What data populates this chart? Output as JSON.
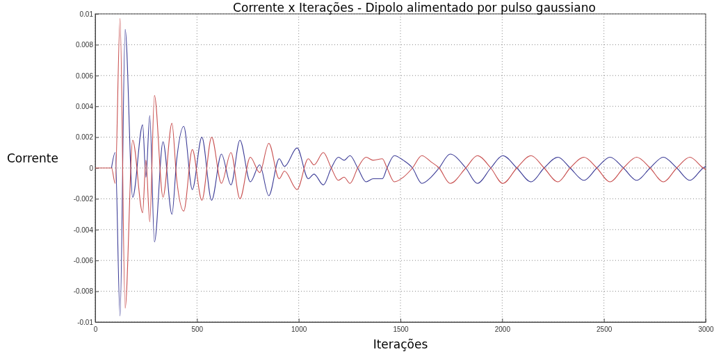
{
  "chart_data": {
    "type": "line",
    "title": "Corrente x Iterações - Dipolo alimentado por pulso gaussiano",
    "xlabel": "Iterações",
    "ylabel": "Corrente",
    "xlim": [
      0,
      3000
    ],
    "xticks": [
      0,
      500,
      1000,
      1500,
      2000,
      2500,
      3000
    ],
    "ylim": [
      -0.01,
      0.01
    ],
    "yticks": [
      -0.01,
      -0.008,
      -0.006,
      -0.004,
      -0.002,
      0,
      0.002,
      0.004,
      0.006,
      0.008,
      0.01
    ],
    "grid": true,
    "line_style": "solid",
    "series": [
      {
        "color": "#3b3b96",
        "x": [
          80,
          98,
          122,
          147,
          184,
          233,
          249,
          268,
          291,
          333,
          377,
          400,
          435,
          477,
          524,
          572,
          620,
          667,
          711,
          762,
          808,
          853,
          904,
          930,
          992,
          1047,
          1075,
          1121,
          1160,
          1195,
          1223,
          1252,
          1290,
          1331,
          1366,
          1411,
          1434,
          1470,
          1514,
          1559,
          1605,
          1650,
          1690,
          1744,
          1821,
          1878,
          1944,
          2003,
          2072,
          2142,
          2206,
          2274,
          2334,
          2402,
          2465,
          2530,
          2596,
          2661,
          2727,
          2792,
          2858,
          2922,
          2988,
          3000
        ],
        "values": [
          0,
          0.001,
          -0.0096,
          0.009,
          -0.0019,
          0.0028,
          -0.0006,
          0.0034,
          -0.0048,
          0.0017,
          -0.003,
          0.0005,
          0.0027,
          -0.0014,
          0.002,
          -0.0021,
          0.0009,
          -0.0011,
          0.0018,
          -0.0009,
          0.0002,
          -0.0018,
          0.0006,
          0.0001,
          0.0013,
          -0.0007,
          -0.0004,
          -0.0011,
          0,
          0.0007,
          0.0005,
          0.0008,
          0,
          -0.0009,
          -0.0007,
          -0.0007,
          0,
          0.0008,
          0.0005,
          0,
          -0.001,
          -0.0006,
          0,
          0.0009,
          0,
          -0.001,
          0,
          0.0008,
          0,
          -0.0009,
          0,
          0.0007,
          0,
          -0.0008,
          0,
          0.0007,
          0,
          -0.0008,
          0,
          0.0007,
          0,
          -0.0008,
          0,
          0.0001
        ]
      },
      {
        "color": "#c84f4f",
        "x": [
          0,
          80,
          98,
          122,
          147,
          184,
          233,
          249,
          268,
          291,
          333,
          377,
          400,
          435,
          477,
          524,
          572,
          620,
          667,
          711,
          762,
          808,
          853,
          904,
          930,
          992,
          1047,
          1075,
          1121,
          1160,
          1195,
          1223,
          1252,
          1290,
          1331,
          1366,
          1411,
          1434,
          1470,
          1514,
          1559,
          1605,
          1650,
          1690,
          1744,
          1821,
          1878,
          1944,
          2003,
          2072,
          2142,
          2206,
          2274,
          2334,
          2402,
          2465,
          2530,
          2596,
          2661,
          2727,
          2792,
          2858,
          2922,
          2988,
          3000
        ],
        "values": [
          0,
          0,
          -0.001,
          0.0097,
          -0.0091,
          0.0018,
          -0.0029,
          0.0005,
          -0.0035,
          0.0047,
          -0.0019,
          0.0029,
          -0.0007,
          -0.0028,
          0.0012,
          -0.0021,
          0.002,
          -0.001,
          0.001,
          -0.002,
          0.0007,
          -0.0003,
          0.0016,
          -0.0007,
          -0.0002,
          -0.0014,
          0.0006,
          0.0002,
          0.001,
          0,
          -0.0008,
          -0.0006,
          -0.001,
          0,
          0.0007,
          0.0005,
          0.0006,
          0,
          -0.0009,
          -0.0006,
          0,
          0.0008,
          0.0004,
          0,
          -0.001,
          0,
          0.0008,
          0,
          -0.001,
          0,
          0.0008,
          0,
          -0.0009,
          0,
          0.0007,
          0,
          -0.0009,
          0,
          0.0007,
          0,
          -0.0009,
          0,
          0.0007,
          0,
          -0.0001
        ]
      }
    ]
  }
}
